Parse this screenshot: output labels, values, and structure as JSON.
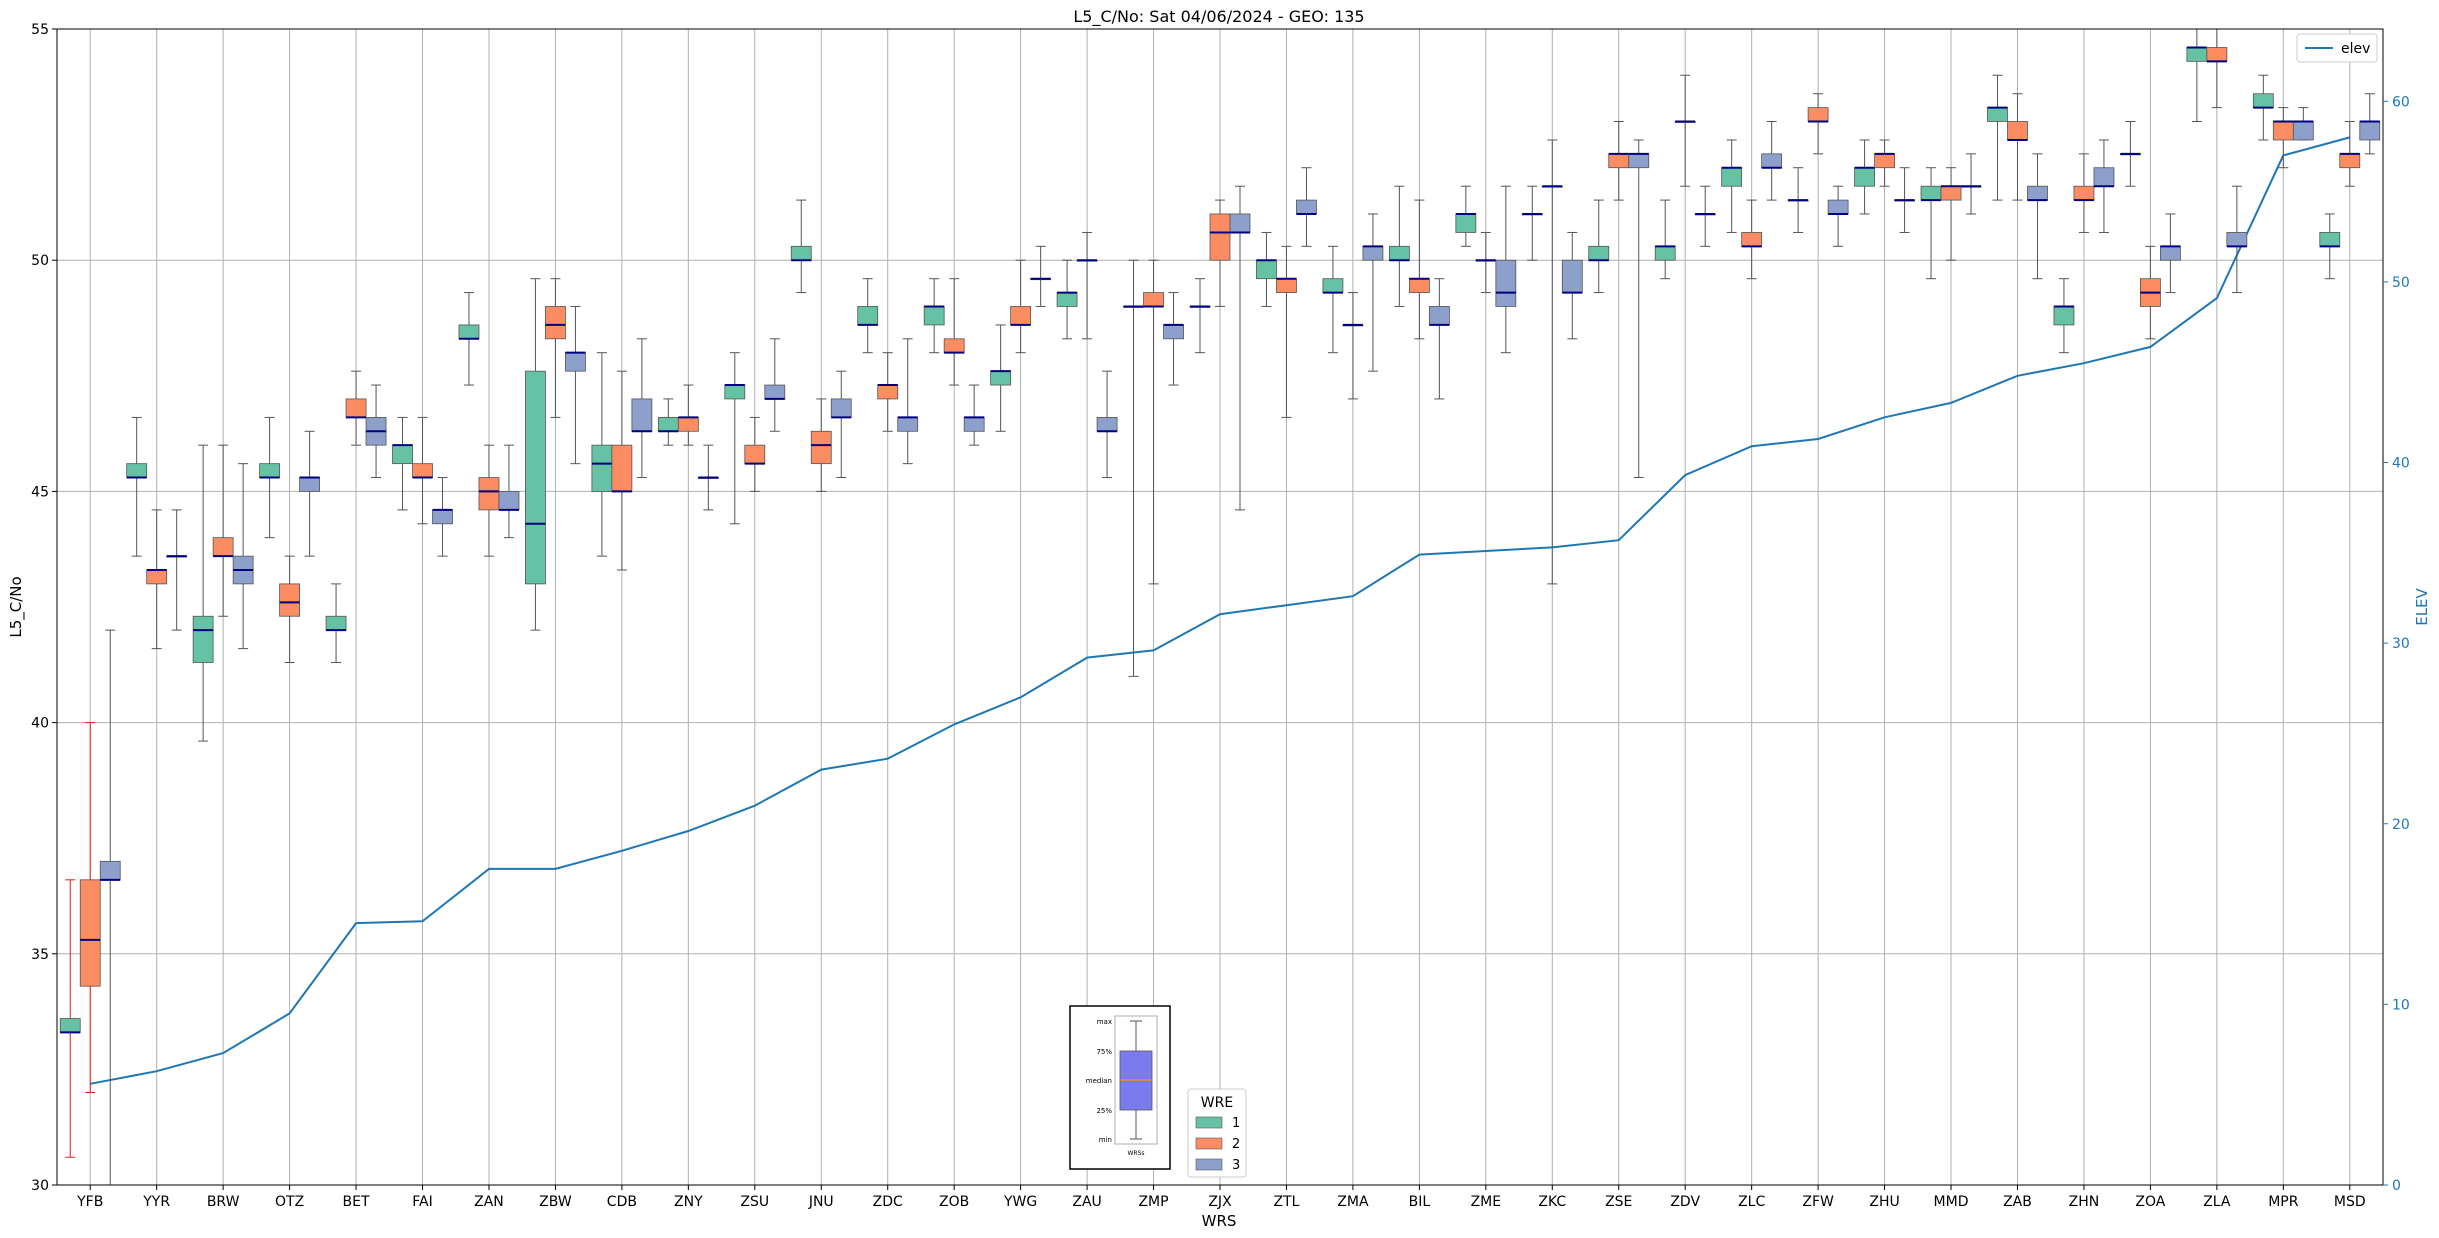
{
  "chart_data": {
    "type": "box",
    "title": "L5_C/No: Sat 04/06/2024 - GEO: 135",
    "xlabel": "WRS",
    "ylabel": "L5_C/No",
    "y2label": "ELEV",
    "ylim": [
      30,
      55
    ],
    "y2lim": [
      0,
      64
    ],
    "yticks": [
      30,
      35,
      40,
      45,
      50,
      55
    ],
    "y2ticks": [
      0,
      10,
      20,
      30,
      40,
      50,
      60
    ],
    "grid": true,
    "categories": [
      "YFB",
      "YYR",
      "BRW",
      "OTZ",
      "BET",
      "FAI",
      "ZAN",
      "ZBW",
      "CDB",
      "ZNY",
      "ZSU",
      "JNU",
      "ZDC",
      "ZOB",
      "YWG",
      "ZAU",
      "ZMP",
      "ZJX",
      "ZTL",
      "ZMA",
      "BIL",
      "ZME",
      "ZKC",
      "ZSE",
      "ZDV",
      "ZLC",
      "ZFW",
      "ZHU",
      "MMD",
      "ZAB",
      "ZHN",
      "ZOA",
      "ZLA",
      "MPR",
      "MSD"
    ],
    "series": [
      {
        "name": "1",
        "color": "#66c2a5",
        "boxes": [
          [
            30.6,
            33.3,
            33.3,
            33.6,
            36.6
          ],
          [
            43.6,
            45.3,
            45.3,
            45.6,
            46.6
          ],
          [
            39.6,
            41.3,
            42.0,
            42.3,
            46.0
          ],
          [
            44.0,
            45.3,
            45.3,
            45.6,
            46.6
          ],
          [
            41.3,
            42.0,
            42.0,
            42.3,
            43.0
          ],
          [
            44.6,
            45.6,
            46.0,
            46.0,
            46.6
          ],
          [
            47.3,
            48.3,
            48.3,
            48.6,
            49.3
          ],
          [
            42.0,
            43.0,
            44.3,
            47.6,
            49.6
          ],
          [
            43.6,
            45.0,
            45.6,
            46.0,
            48.0
          ],
          [
            46.0,
            46.3,
            46.3,
            46.6,
            47.0
          ],
          [
            44.3,
            47.0,
            47.3,
            47.3,
            48.0
          ],
          [
            49.3,
            50.0,
            50.0,
            50.3,
            51.3
          ],
          [
            48.0,
            48.6,
            48.6,
            49.0,
            49.6
          ],
          [
            48.0,
            48.6,
            49.0,
            49.0,
            49.6
          ],
          [
            46.3,
            47.3,
            47.6,
            47.6,
            48.6
          ],
          [
            48.3,
            49.0,
            49.3,
            49.3,
            50.0
          ],
          [
            41.0,
            49.0,
            49.0,
            49.0,
            50.0
          ],
          [
            48.0,
            49.0,
            49.0,
            49.0,
            49.6
          ],
          [
            49.0,
            49.6,
            50.0,
            50.0,
            50.6
          ],
          [
            48.0,
            49.3,
            49.3,
            49.6,
            50.3
          ],
          [
            49.0,
            50.0,
            50.0,
            50.3,
            51.6
          ],
          [
            50.3,
            50.6,
            51.0,
            51.0,
            51.6
          ],
          [
            50.0,
            51.0,
            51.0,
            51.0,
            51.6
          ],
          [
            49.3,
            50.0,
            50.0,
            50.3,
            51.3
          ],
          [
            49.6,
            50.0,
            50.3,
            50.3,
            51.3
          ],
          [
            50.6,
            51.6,
            52.0,
            52.0,
            52.6
          ],
          [
            50.6,
            51.3,
            51.3,
            51.3,
            52.0
          ],
          [
            51.0,
            51.6,
            52.0,
            52.0,
            52.6
          ],
          [
            49.6,
            51.3,
            51.3,
            51.6,
            52.0
          ],
          [
            51.3,
            53.0,
            53.3,
            53.3,
            54.0
          ],
          [
            48.0,
            48.6,
            49.0,
            49.0,
            49.6
          ],
          [
            51.6,
            52.3,
            52.3,
            52.3,
            53.0
          ],
          [
            53.0,
            54.3,
            54.6,
            54.6,
            55.0
          ],
          [
            52.6,
            53.3,
            53.3,
            53.6,
            54.0
          ],
          [
            49.6,
            50.3,
            50.3,
            50.6,
            51.0
          ]
        ]
      },
      {
        "name": "2",
        "color": "#fc8d62",
        "boxes": [
          [
            32.0,
            34.3,
            35.3,
            36.6,
            40.0
          ],
          [
            41.6,
            43.0,
            43.3,
            43.3,
            44.6
          ],
          [
            42.3,
            43.6,
            43.6,
            44.0,
            46.0
          ],
          [
            41.3,
            42.3,
            42.6,
            43.0,
            43.6
          ],
          [
            46.0,
            46.6,
            46.6,
            47.0,
            47.6
          ],
          [
            44.3,
            45.3,
            45.3,
            45.6,
            46.6
          ],
          [
            43.6,
            44.6,
            45.0,
            45.3,
            46.0
          ],
          [
            46.6,
            48.3,
            48.6,
            49.0,
            49.6
          ],
          [
            43.3,
            45.0,
            45.0,
            46.0,
            47.6
          ],
          [
            46.0,
            46.3,
            46.6,
            46.6,
            47.3
          ],
          [
            45.0,
            45.6,
            45.6,
            46.0,
            46.6
          ],
          [
            45.0,
            45.6,
            46.0,
            46.3,
            47.0
          ],
          [
            46.3,
            47.0,
            47.3,
            47.3,
            48.0
          ],
          [
            47.3,
            48.0,
            48.0,
            48.3,
            49.6
          ],
          [
            48.0,
            48.6,
            48.6,
            49.0,
            50.0
          ],
          [
            48.3,
            50.0,
            50.0,
            50.0,
            50.6
          ],
          [
            43.0,
            49.0,
            49.0,
            49.3,
            50.0
          ],
          [
            49.0,
            50.0,
            50.6,
            51.0,
            51.3
          ],
          [
            46.6,
            49.3,
            49.6,
            49.6,
            50.3
          ],
          [
            47.0,
            48.6,
            48.6,
            48.6,
            49.3
          ],
          [
            48.3,
            49.3,
            49.6,
            49.6,
            51.3
          ],
          [
            49.3,
            50.0,
            50.0,
            50.0,
            50.6
          ],
          [
            43.0,
            51.6,
            51.6,
            51.6,
            52.6
          ],
          [
            51.3,
            52.0,
            52.3,
            52.3,
            53.0
          ],
          [
            51.6,
            53.0,
            53.0,
            53.0,
            54.0
          ],
          [
            49.6,
            50.3,
            50.3,
            50.6,
            51.3
          ],
          [
            52.3,
            53.0,
            53.0,
            53.3,
            53.6
          ],
          [
            51.6,
            52.0,
            52.3,
            52.3,
            52.6
          ],
          [
            50.0,
            51.3,
            51.6,
            51.6,
            52.0
          ],
          [
            51.3,
            52.6,
            52.6,
            53.0,
            53.6
          ],
          [
            50.6,
            51.3,
            51.3,
            51.6,
            52.3
          ],
          [
            48.3,
            49.0,
            49.3,
            49.6,
            50.3
          ],
          [
            53.3,
            54.3,
            54.3,
            54.6,
            55.0
          ],
          [
            52.0,
            52.6,
            53.0,
            53.0,
            53.3
          ],
          [
            51.6,
            52.0,
            52.3,
            52.3,
            53.0
          ]
        ]
      },
      {
        "name": "3",
        "color": "#8da0cb",
        "boxes": [
          [
            30.0,
            36.6,
            36.6,
            37.0,
            42.0
          ],
          [
            42.0,
            43.6,
            43.6,
            43.6,
            44.6
          ],
          [
            41.6,
            43.0,
            43.3,
            43.6,
            45.6
          ],
          [
            43.6,
            45.0,
            45.3,
            45.3,
            46.3
          ],
          [
            45.3,
            46.0,
            46.3,
            46.6,
            47.3
          ],
          [
            43.6,
            44.3,
            44.6,
            44.6,
            45.3
          ],
          [
            44.0,
            44.6,
            44.6,
            45.0,
            46.0
          ],
          [
            45.6,
            47.6,
            48.0,
            48.0,
            49.0
          ],
          [
            45.3,
            46.3,
            46.3,
            47.0,
            48.3
          ],
          [
            44.6,
            45.3,
            45.3,
            45.3,
            46.0
          ],
          [
            46.3,
            47.0,
            47.0,
            47.3,
            48.3
          ],
          [
            45.3,
            46.6,
            46.6,
            47.0,
            47.6
          ],
          [
            45.6,
            46.3,
            46.6,
            46.6,
            48.3
          ],
          [
            46.0,
            46.3,
            46.6,
            46.6,
            47.3
          ],
          [
            49.0,
            49.6,
            49.6,
            49.6,
            50.3
          ],
          [
            45.3,
            46.3,
            46.3,
            46.6,
            47.6
          ],
          [
            47.3,
            48.3,
            48.6,
            48.6,
            49.3
          ],
          [
            44.6,
            50.6,
            50.6,
            51.0,
            51.6
          ],
          [
            50.3,
            51.0,
            51.0,
            51.3,
            52.0
          ],
          [
            47.6,
            50.0,
            50.3,
            50.3,
            51.0
          ],
          [
            47.0,
            48.6,
            48.6,
            49.0,
            49.6
          ],
          [
            48.0,
            49.0,
            49.3,
            50.0,
            51.6
          ],
          [
            48.3,
            49.3,
            49.3,
            50.0,
            50.6
          ],
          [
            45.3,
            52.0,
            52.3,
            52.3,
            52.6
          ],
          [
            50.3,
            51.0,
            51.0,
            51.0,
            51.6
          ],
          [
            51.3,
            52.0,
            52.0,
            52.3,
            53.0
          ],
          [
            50.3,
            51.0,
            51.0,
            51.3,
            51.6
          ],
          [
            50.6,
            51.3,
            51.3,
            51.3,
            52.0
          ],
          [
            51.0,
            51.6,
            51.6,
            51.6,
            52.3
          ],
          [
            49.6,
            51.3,
            51.3,
            51.6,
            52.3
          ],
          [
            50.6,
            51.6,
            51.6,
            52.0,
            52.6
          ],
          [
            49.3,
            50.0,
            50.3,
            50.3,
            51.0
          ],
          [
            49.3,
            50.3,
            50.3,
            50.6,
            51.6
          ],
          [
            52.6,
            52.6,
            53.0,
            53.0,
            53.3
          ],
          [
            52.3,
            52.6,
            53.0,
            53.0,
            53.6
          ]
        ]
      }
    ],
    "line": {
      "name": "elev",
      "color": "#1f77b4",
      "values": [
        5.6,
        6.3,
        7.3,
        9.5,
        14.5,
        14.6,
        17.5,
        17.5,
        18.5,
        19.6,
        21.0,
        23.0,
        23.6,
        25.5,
        27.0,
        29.2,
        29.6,
        31.6,
        32.1,
        32.6,
        34.9,
        35.1,
        35.3,
        35.7,
        39.3,
        40.9,
        41.3,
        42.5,
        43.3,
        44.8,
        45.5,
        46.4,
        49.1,
        57.0,
        58.0
      ]
    },
    "legend_wre": {
      "title": "WRE",
      "placement": "bottom-center",
      "entries": [
        "1",
        "2",
        "3"
      ]
    },
    "legend_line": {
      "placement": "top-right",
      "label": "elev"
    },
    "inset_key": {
      "labels": [
        "max",
        "75%",
        "median",
        "25%",
        "min"
      ],
      "xlabel": "WRSs"
    }
  },
  "colors": {
    "median": "#000080",
    "whisker": "#555555",
    "highlight_whisker": "#e41a1c",
    "grid": "#b0b0b0",
    "axis": "#000000",
    "right_axis": "#1f77b4",
    "key_box": "#7b7bee",
    "key_median": "#ff8c00"
  }
}
